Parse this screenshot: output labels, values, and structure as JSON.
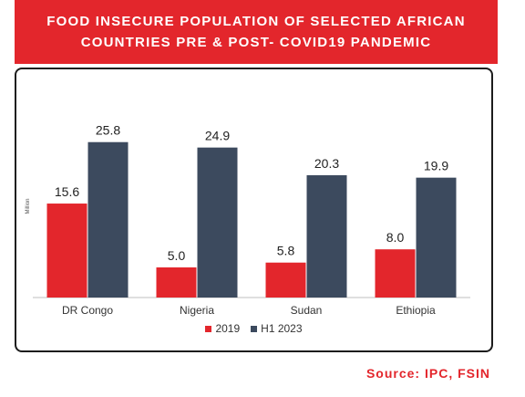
{
  "banner": {
    "line1": "FOOD INSECURE POPULATION OF SELECTED AFRICAN",
    "line2": "COUNTRIES PRE & POST- COVID19 PANDEMIC"
  },
  "chart_data": {
    "type": "bar",
    "title": "FOOD INSECURE POPULATION OF SELECTED AFRICAN COUNTRIES PRE & POST- COVID19 PANDEMIC",
    "xlabel": "",
    "ylabel": "Million",
    "ylim": [
      0,
      30
    ],
    "categories": [
      "DR Congo",
      "Nigeria",
      "Sudan",
      "Ethiopia"
    ],
    "series": [
      {
        "name": "2019",
        "values": [
          15.6,
          5.0,
          5.8,
          8.0
        ],
        "color": "#e3262c"
      },
      {
        "name": "H1 2023",
        "values": [
          25.8,
          24.9,
          20.3,
          19.9
        ],
        "color": "#3c4a5e"
      }
    ],
    "legend_position": "bottom",
    "grid": false
  },
  "source": "Source: IPC, FSIN"
}
